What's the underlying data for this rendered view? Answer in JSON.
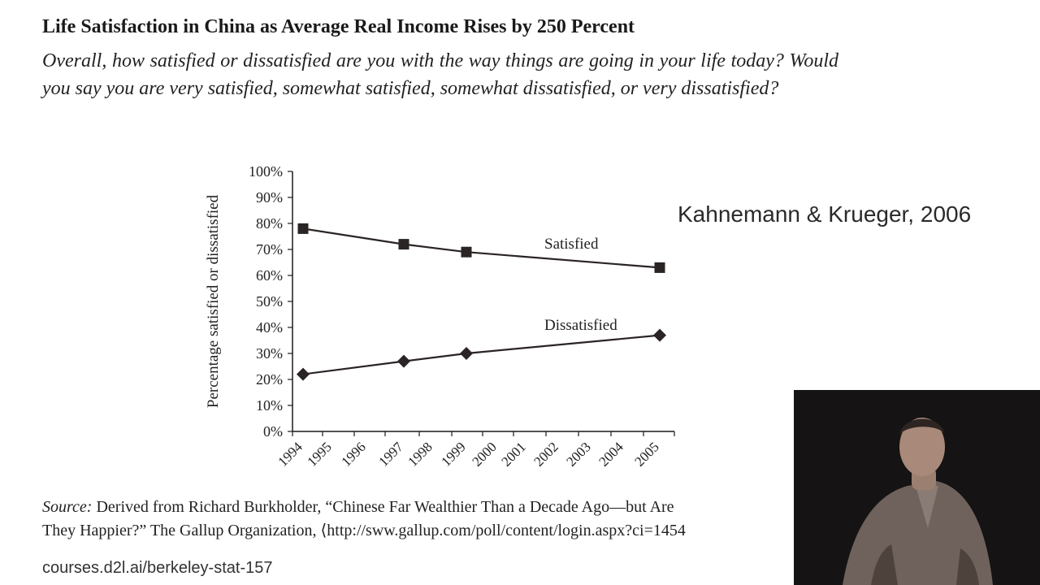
{
  "slide": {
    "title": "Life Satisfaction in China as Average Real Income Rises by 250 Percent",
    "question": "Overall, how satisfied or dissatisfied are you with the way things are going in your life today? Would you say you are very satisfied, somewhat satisfied, somewhat dissatisfied, or very dissatisfied?",
    "citation": "Kahnemann & Krueger, 2006",
    "source_lead": "Source:",
    "source_line1": " Derived from Richard Burkholder, “Chinese Far Wealthier Than a Decade Ago—but Are",
    "source_line2": "They Happier?” The Gallup Organization, ⟨http://sww.gallup.com/poll/content/login.aspx?ci=1454",
    "footer_url": "courses.d2l.ai/berkeley-stat-157"
  },
  "colors": {
    "line": "#2b2424",
    "axis": "#1a1a1a",
    "webcam_bg": "#151313"
  },
  "chart_data": {
    "type": "line",
    "ylabel": "Percentage satisfied or dissatisfied",
    "xlabel": "",
    "ylim": [
      0,
      100
    ],
    "yticks": [
      "0%",
      "10%",
      "20%",
      "30%",
      "40%",
      "50%",
      "60%",
      "70%",
      "80%",
      "90%",
      "100%"
    ],
    "categories": [
      "1994",
      "1995",
      "1996",
      "1997",
      "1998",
      "1999",
      "2000",
      "2001",
      "2002",
      "2003",
      "2004",
      "2005"
    ],
    "series": [
      {
        "name": "Satisfied",
        "marker": "square",
        "x": [
          "1994",
          "1997",
          "1999",
          "2005"
        ],
        "values": [
          78,
          72,
          69,
          63
        ]
      },
      {
        "name": "Dissatisfied",
        "marker": "diamond",
        "x": [
          "1994",
          "1997",
          "1999",
          "2005"
        ],
        "values": [
          22,
          27,
          30,
          37
        ]
      }
    ],
    "grid": false,
    "legend": "inline labels"
  }
}
